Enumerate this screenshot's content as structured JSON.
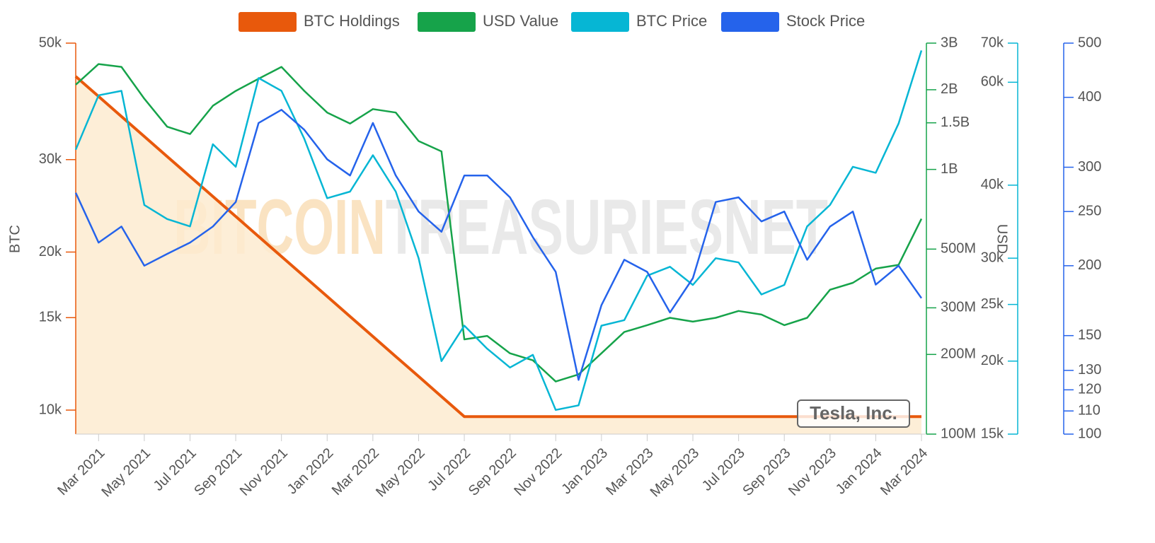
{
  "chart_data": {
    "type": "line",
    "watermark": [
      "BITCOIN",
      "TREASURIESNET"
    ],
    "annotation": "Tesla, Inc.",
    "ylabel": "BTC",
    "y2label": "USD",
    "log": true,
    "x": [
      "2021-02",
      "2021-03",
      "2021-04",
      "2021-05",
      "2021-06",
      "2021-07",
      "2021-08",
      "2021-09",
      "2021-10",
      "2021-11",
      "2021-12",
      "2022-01",
      "2022-02",
      "2022-03",
      "2022-04",
      "2022-05",
      "2022-06",
      "2022-07",
      "2022-08",
      "2022-09",
      "2022-10",
      "2022-11",
      "2022-12",
      "2023-01",
      "2023-02",
      "2023-03",
      "2023-04",
      "2023-05",
      "2023-06",
      "2023-07",
      "2023-08",
      "2023-09",
      "2023-10",
      "2023-11",
      "2023-12",
      "2024-01",
      "2024-02",
      "2024-03"
    ],
    "xlim": [
      "2021-02",
      "2024-03"
    ],
    "xticks": [
      {
        "value": "2021-03",
        "label": "Mar 2021"
      },
      {
        "value": "2021-05",
        "label": "May 2021"
      },
      {
        "value": "2021-07",
        "label": "Jul 2021"
      },
      {
        "value": "2021-09",
        "label": "Sep 2021"
      },
      {
        "value": "2021-11",
        "label": "Nov 2021"
      },
      {
        "value": "2022-01",
        "label": "Jan 2022"
      },
      {
        "value": "2022-03",
        "label": "Mar 2022"
      },
      {
        "value": "2022-05",
        "label": "May 2022"
      },
      {
        "value": "2022-07",
        "label": "Jul 2022"
      },
      {
        "value": "2022-09",
        "label": "Sep 2022"
      },
      {
        "value": "2022-11",
        "label": "Nov 2022"
      },
      {
        "value": "2023-01",
        "label": "Jan 2023"
      },
      {
        "value": "2023-03",
        "label": "Mar 2023"
      },
      {
        "value": "2023-05",
        "label": "May 2023"
      },
      {
        "value": "2023-07",
        "label": "Jul 2023"
      },
      {
        "value": "2023-09",
        "label": "Sep 2023"
      },
      {
        "value": "2023-11",
        "label": "Nov 2023"
      },
      {
        "value": "2024-01",
        "label": "Jan 2024"
      },
      {
        "value": "2024-03",
        "label": "Mar 2024"
      }
    ],
    "ylim": [
      9000,
      50000
    ],
    "yticks": [
      {
        "value": 10000,
        "label": "10k"
      },
      {
        "value": 15000,
        "label": "15k"
      },
      {
        "value": 20000,
        "label": "20k"
      },
      {
        "value": 30000,
        "label": "30k"
      },
      {
        "value": 50000,
        "label": "50k"
      }
    ],
    "y2lim": [
      100000000,
      3000000000
    ],
    "y2ticks": [
      {
        "value": 100000000,
        "label": "100M"
      },
      {
        "value": 200000000,
        "label": "200M"
      },
      {
        "value": 300000000,
        "label": "300M"
      },
      {
        "value": 500000000,
        "label": "500M"
      },
      {
        "value": 1000000000,
        "label": "1B"
      },
      {
        "value": 1500000000,
        "label": "1.5B"
      },
      {
        "value": 2000000000,
        "label": "2B"
      },
      {
        "value": 3000000000,
        "label": "3B"
      }
    ],
    "y3lim": [
      15000,
      70000
    ],
    "y3ticks": [
      {
        "value": 15000,
        "label": "15k"
      },
      {
        "value": 20000,
        "label": "20k"
      },
      {
        "value": 25000,
        "label": "25k"
      },
      {
        "value": 30000,
        "label": "30k"
      },
      {
        "value": 40000,
        "label": "40k"
      },
      {
        "value": 60000,
        "label": "60k"
      },
      {
        "value": 70000,
        "label": "70k"
      }
    ],
    "y4lim": [
      100,
      500
    ],
    "y4ticks": [
      100,
      110,
      120,
      130,
      150,
      200,
      250,
      300,
      400,
      500
    ],
    "series": [
      {
        "name": "BTC Holdings",
        "color": "#e8590c",
        "axis": "y",
        "area": true,
        "values": [
          43200,
          39570,
          36250,
          33200,
          30410,
          27860,
          25520,
          23380,
          21410,
          19610,
          17970,
          16460,
          15080,
          13810,
          12650,
          11590,
          10610,
          9720,
          9720,
          9720,
          9720,
          9720,
          9720,
          9720,
          9720,
          9720,
          9720,
          9720,
          9720,
          9720,
          9720,
          9720,
          9720,
          9720,
          9720,
          9720,
          9720,
          9720
        ]
      },
      {
        "name": "USD Value",
        "color": "#16a34a",
        "axis": "y2",
        "values": [
          2090000000,
          2500000000,
          2440000000,
          1850000000,
          1450000000,
          1360000000,
          1740000000,
          1980000000,
          2200000000,
          2440000000,
          1980000000,
          1640000000,
          1490000000,
          1690000000,
          1640000000,
          1280000000,
          1170000000,
          228000000,
          235000000,
          202000000,
          190000000,
          158000000,
          168000000,
          202000000,
          243000000,
          258000000,
          275000000,
          266000000,
          275000000,
          292000000,
          283000000,
          258000000,
          275000000,
          351000000,
          373000000,
          422000000,
          436000000,
          651000000
        ]
      },
      {
        "name": "BTC Price",
        "color": "#06b6d4",
        "axis": "y3",
        "values": [
          46000,
          57000,
          58000,
          37000,
          35000,
          34000,
          47000,
          43000,
          61000,
          58000,
          48000,
          38000,
          39000,
          45000,
          39000,
          30000,
          20000,
          23000,
          21000,
          19500,
          20500,
          16500,
          16800,
          23000,
          23500,
          28000,
          29000,
          27000,
          30000,
          29500,
          26000,
          27000,
          34000,
          37000,
          43000,
          42000,
          51000,
          68000
        ]
      },
      {
        "name": "Stock Price",
        "color": "#2563eb",
        "axis": "y4",
        "values": [
          270,
          220,
          235,
          200,
          210,
          220,
          235,
          260,
          360,
          380,
          350,
          310,
          290,
          360,
          290,
          250,
          230,
          290,
          290,
          265,
          225,
          195,
          125,
          170,
          205,
          195,
          165,
          190,
          260,
          265,
          240,
          250,
          205,
          235,
          250,
          185,
          200,
          175
        ]
      }
    ]
  }
}
